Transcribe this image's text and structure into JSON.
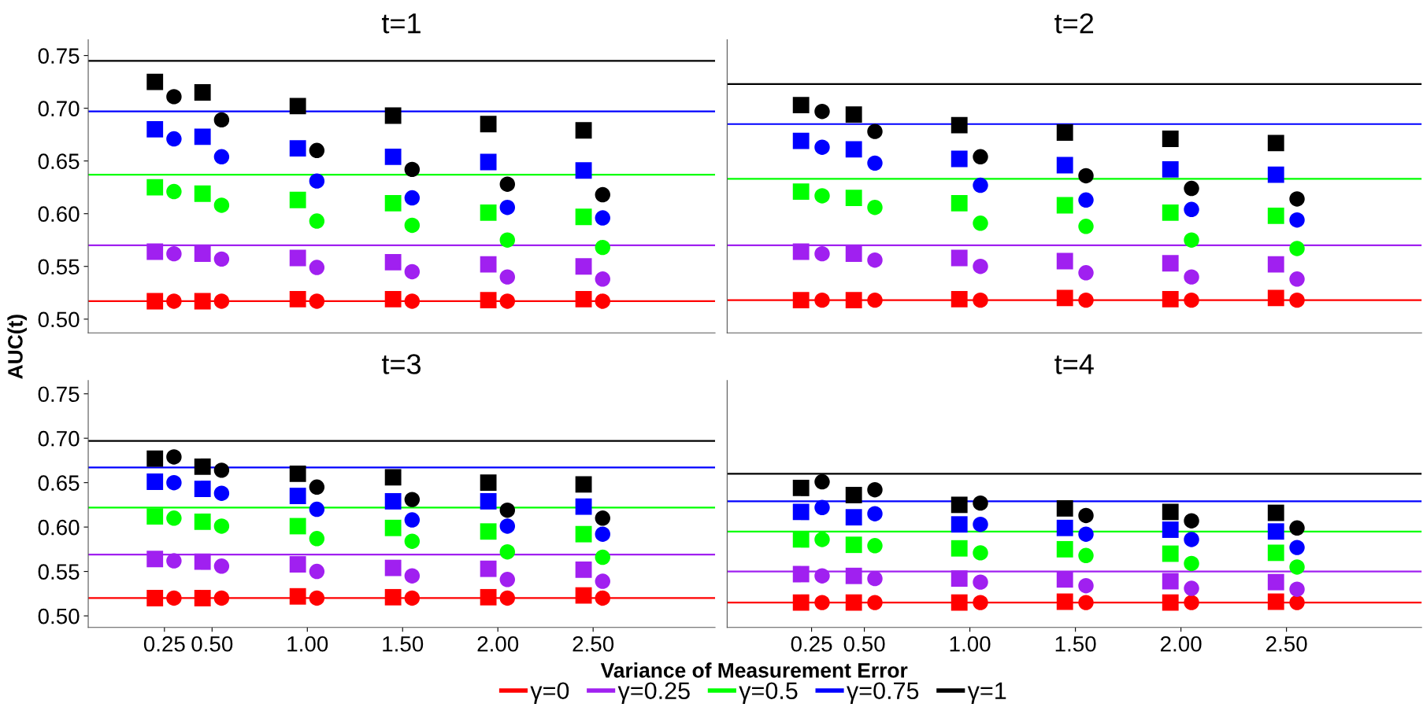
{
  "chart_data": [
    {
      "type": "scatter",
      "title": "t=1",
      "xlabel": "Variance of Measurement Error",
      "ylabel": "AUC(t)",
      "xlim": [
        -0.15,
        3.14
      ],
      "ylim": [
        0.487,
        0.765
      ],
      "yticks": [
        {
          "value": 0.5,
          "label": "0.50"
        },
        0.55,
        {
          "value": 0.6,
          "label": "0.60"
        },
        0.65,
        {
          "value": 0.7,
          "label": "0.70"
        },
        0.75
      ],
      "tick_labels": "y",
      "legend": "bottom",
      "series": [
        {
          "name": "γ=0",
          "type": "line",
          "color": "#ff0000",
          "x": [
            -0.15,
            3.14
          ],
          "values": [
            0.517,
            0.517
          ]
        },
        {
          "name": "γ=0.25",
          "type": "line",
          "color": "#a020f0",
          "x": [
            -0.15,
            3.14
          ],
          "values": [
            0.57,
            0.57
          ]
        },
        {
          "name": "γ=0.5",
          "type": "line",
          "color": "#00ff00",
          "x": [
            -0.15,
            3.14
          ],
          "values": [
            0.637,
            0.637
          ]
        },
        {
          "name": "γ=0.75",
          "type": "line",
          "color": "#0000ff",
          "x": [
            -0.15,
            3.14
          ],
          "values": [
            0.697,
            0.697
          ]
        },
        {
          "name": "γ=1",
          "type": "line",
          "color": "#000000",
          "x": [
            -0.15,
            3.14
          ],
          "values": [
            0.745,
            0.745
          ]
        },
        {
          "marker": "square",
          "color": "#ff0000",
          "x": [
            0.2,
            0.45,
            0.95,
            1.45,
            1.95,
            2.45
          ],
          "values": [
            0.517,
            0.517,
            0.519,
            0.519,
            0.518,
            0.519
          ]
        },
        {
          "marker": "circle",
          "color": "#ff0000",
          "x": [
            0.3,
            0.55,
            1.05,
            1.55,
            2.05,
            2.55
          ],
          "values": [
            0.517,
            0.517,
            0.517,
            0.517,
            0.517,
            0.517
          ]
        },
        {
          "marker": "square",
          "color": "#a020f0",
          "x": [
            0.2,
            0.45,
            0.95,
            1.45,
            1.95,
            2.45
          ],
          "values": [
            0.564,
            0.562,
            0.558,
            0.554,
            0.552,
            0.55
          ]
        },
        {
          "marker": "circle",
          "color": "#a020f0",
          "x": [
            0.3,
            0.55,
            1.05,
            1.55,
            2.05,
            2.55
          ],
          "values": [
            0.562,
            0.557,
            0.549,
            0.545,
            0.54,
            0.538
          ]
        },
        {
          "marker": "square",
          "color": "#00ff00",
          "x": [
            0.2,
            0.45,
            0.95,
            1.45,
            1.95,
            2.45
          ],
          "values": [
            0.625,
            0.619,
            0.613,
            0.61,
            0.601,
            0.597
          ]
        },
        {
          "marker": "circle",
          "color": "#00ff00",
          "x": [
            0.3,
            0.55,
            1.05,
            1.55,
            2.05,
            2.55
          ],
          "values": [
            0.621,
            0.608,
            0.593,
            0.589,
            0.575,
            0.568
          ]
        },
        {
          "marker": "square",
          "color": "#0000ff",
          "x": [
            0.2,
            0.45,
            0.95,
            1.45,
            1.95,
            2.45
          ],
          "values": [
            0.68,
            0.673,
            0.662,
            0.654,
            0.649,
            0.641
          ]
        },
        {
          "marker": "circle",
          "color": "#0000ff",
          "x": [
            0.3,
            0.55,
            1.05,
            1.55,
            2.05,
            2.55
          ],
          "values": [
            0.671,
            0.654,
            0.631,
            0.615,
            0.606,
            0.596
          ]
        },
        {
          "marker": "square",
          "color": "#000000",
          "x": [
            0.2,
            0.45,
            0.95,
            1.45,
            1.95,
            2.45
          ],
          "values": [
            0.725,
            0.715,
            0.702,
            0.693,
            0.685,
            0.679
          ]
        },
        {
          "marker": "circle",
          "color": "#000000",
          "x": [
            0.3,
            0.55,
            1.05,
            1.55,
            2.05,
            2.55
          ],
          "values": [
            0.711,
            0.689,
            0.66,
            0.642,
            0.628,
            0.618
          ]
        }
      ]
    },
    {
      "type": "scatter",
      "title": "t=2",
      "xlim": [
        -0.15,
        3.14
      ],
      "ylim": [
        0.487,
        0.765
      ],
      "tick_labels": false,
      "series": [
        {
          "type": "line",
          "color": "#ff0000",
          "x": [
            -0.15,
            3.14
          ],
          "values": [
            0.518,
            0.518
          ]
        },
        {
          "type": "line",
          "color": "#a020f0",
          "x": [
            -0.15,
            3.14
          ],
          "values": [
            0.57,
            0.57
          ]
        },
        {
          "type": "line",
          "color": "#00ff00",
          "x": [
            -0.15,
            3.14
          ],
          "values": [
            0.633,
            0.633
          ]
        },
        {
          "type": "line",
          "color": "#0000ff",
          "x": [
            -0.15,
            3.14
          ],
          "values": [
            0.685,
            0.685
          ]
        },
        {
          "type": "line",
          "color": "#000000",
          "x": [
            -0.15,
            3.14
          ],
          "values": [
            0.723,
            0.723
          ]
        },
        {
          "marker": "square",
          "color": "#ff0000",
          "x": [
            0.2,
            0.45,
            0.95,
            1.45,
            1.95,
            2.45
          ],
          "values": [
            0.518,
            0.518,
            0.519,
            0.52,
            0.519,
            0.52
          ]
        },
        {
          "marker": "circle",
          "color": "#ff0000",
          "x": [
            0.3,
            0.55,
            1.05,
            1.55,
            2.05,
            2.55
          ],
          "values": [
            0.518,
            0.518,
            0.518,
            0.518,
            0.518,
            0.518
          ]
        },
        {
          "marker": "square",
          "color": "#a020f0",
          "x": [
            0.2,
            0.45,
            0.95,
            1.45,
            1.95,
            2.45
          ],
          "values": [
            0.564,
            0.562,
            0.558,
            0.555,
            0.553,
            0.552
          ]
        },
        {
          "marker": "circle",
          "color": "#a020f0",
          "x": [
            0.3,
            0.55,
            1.05,
            1.55,
            2.05,
            2.55
          ],
          "values": [
            0.562,
            0.556,
            0.55,
            0.544,
            0.54,
            0.538
          ]
        },
        {
          "marker": "square",
          "color": "#00ff00",
          "x": [
            0.2,
            0.45,
            0.95,
            1.45,
            1.95,
            2.45
          ],
          "values": [
            0.621,
            0.615,
            0.61,
            0.608,
            0.601,
            0.598
          ]
        },
        {
          "marker": "circle",
          "color": "#00ff00",
          "x": [
            0.3,
            0.55,
            1.05,
            1.55,
            2.05,
            2.55
          ],
          "values": [
            0.617,
            0.606,
            0.591,
            0.588,
            0.575,
            0.567
          ]
        },
        {
          "marker": "square",
          "color": "#0000ff",
          "x": [
            0.2,
            0.45,
            0.95,
            1.45,
            1.95,
            2.45
          ],
          "values": [
            0.669,
            0.661,
            0.652,
            0.646,
            0.642,
            0.637
          ]
        },
        {
          "marker": "circle",
          "color": "#0000ff",
          "x": [
            0.3,
            0.55,
            1.05,
            1.55,
            2.05,
            2.55
          ],
          "values": [
            0.663,
            0.648,
            0.627,
            0.613,
            0.604,
            0.594
          ]
        },
        {
          "marker": "square",
          "color": "#000000",
          "x": [
            0.2,
            0.45,
            0.95,
            1.45,
            1.95,
            2.45
          ],
          "values": [
            0.703,
            0.694,
            0.684,
            0.677,
            0.671,
            0.667
          ]
        },
        {
          "marker": "circle",
          "color": "#000000",
          "x": [
            0.3,
            0.55,
            1.05,
            1.55,
            2.05,
            2.55
          ],
          "values": [
            0.697,
            0.678,
            0.654,
            0.636,
            0.624,
            0.614
          ]
        }
      ]
    },
    {
      "type": "scatter",
      "title": "t=3",
      "xlim": [
        -0.15,
        3.14
      ],
      "ylim": [
        0.487,
        0.765
      ],
      "xticks": [
        0.25,
        {
          "value": 0.5,
          "label": "0.50"
        },
        {
          "value": 1,
          "label": "1.00"
        },
        {
          "value": 1.5,
          "label": "1.50"
        },
        {
          "value": 2,
          "label": "2.00"
        },
        {
          "value": 2.5,
          "label": "2.50"
        }
      ],
      "yticks": [
        {
          "value": 0.5,
          "label": "0.50"
        },
        0.55,
        {
          "value": 0.6,
          "label": "0.60"
        },
        0.65,
        {
          "value": 0.7,
          "label": "0.70"
        },
        0.75
      ],
      "series": [
        {
          "type": "line",
          "color": "#ff0000",
          "x": [
            -0.15,
            3.14
          ],
          "values": [
            0.52,
            0.52
          ]
        },
        {
          "type": "line",
          "color": "#a020f0",
          "x": [
            -0.15,
            3.14
          ],
          "values": [
            0.569,
            0.569
          ]
        },
        {
          "type": "line",
          "color": "#00ff00",
          "x": [
            -0.15,
            3.14
          ],
          "values": [
            0.622,
            0.622
          ]
        },
        {
          "type": "line",
          "color": "#0000ff",
          "x": [
            -0.15,
            3.14
          ],
          "values": [
            0.667,
            0.667
          ]
        },
        {
          "type": "line",
          "color": "#000000",
          "x": [
            -0.15,
            3.14
          ],
          "values": [
            0.697,
            0.697
          ]
        },
        {
          "marker": "square",
          "color": "#ff0000",
          "x": [
            0.2,
            0.45,
            0.95,
            1.45,
            1.95,
            2.45
          ],
          "values": [
            0.52,
            0.52,
            0.522,
            0.521,
            0.521,
            0.523
          ]
        },
        {
          "marker": "circle",
          "color": "#ff0000",
          "x": [
            0.3,
            0.55,
            1.05,
            1.55,
            2.05,
            2.55
          ],
          "values": [
            0.52,
            0.52,
            0.52,
            0.52,
            0.52,
            0.52
          ]
        },
        {
          "marker": "square",
          "color": "#a020f0",
          "x": [
            0.2,
            0.45,
            0.95,
            1.45,
            1.95,
            2.45
          ],
          "values": [
            0.564,
            0.561,
            0.558,
            0.554,
            0.553,
            0.552
          ]
        },
        {
          "marker": "circle",
          "color": "#a020f0",
          "x": [
            0.3,
            0.55,
            1.05,
            1.55,
            2.05,
            2.55
          ],
          "values": [
            0.562,
            0.556,
            0.55,
            0.545,
            0.541,
            0.539
          ]
        },
        {
          "marker": "square",
          "color": "#00ff00",
          "x": [
            0.2,
            0.45,
            0.95,
            1.45,
            1.95,
            2.45
          ],
          "values": [
            0.612,
            0.606,
            0.601,
            0.599,
            0.595,
            0.592
          ]
        },
        {
          "marker": "circle",
          "color": "#00ff00",
          "x": [
            0.3,
            0.55,
            1.05,
            1.55,
            2.05,
            2.55
          ],
          "values": [
            0.61,
            0.601,
            0.587,
            0.584,
            0.572,
            0.566
          ]
        },
        {
          "marker": "square",
          "color": "#0000ff",
          "x": [
            0.2,
            0.45,
            0.95,
            1.45,
            1.95,
            2.45
          ],
          "values": [
            0.651,
            0.643,
            0.635,
            0.629,
            0.629,
            0.623
          ]
        },
        {
          "marker": "circle",
          "color": "#0000ff",
          "x": [
            0.3,
            0.55,
            1.05,
            1.55,
            2.05,
            2.55
          ],
          "values": [
            0.65,
            0.638,
            0.62,
            0.608,
            0.601,
            0.592
          ]
        },
        {
          "marker": "square",
          "color": "#000000",
          "x": [
            0.2,
            0.45,
            0.95,
            1.45,
            1.95,
            2.45
          ],
          "values": [
            0.677,
            0.668,
            0.66,
            0.656,
            0.65,
            0.648
          ]
        },
        {
          "marker": "circle",
          "color": "#000000",
          "x": [
            0.3,
            0.55,
            1.05,
            1.55,
            2.05,
            2.55
          ],
          "values": [
            0.679,
            0.664,
            0.645,
            0.631,
            0.619,
            0.61
          ]
        }
      ]
    },
    {
      "type": "scatter",
      "title": "t=4",
      "xlim": [
        -0.15,
        3.14
      ],
      "ylim": [
        0.487,
        0.765
      ],
      "xticks": [
        0.25,
        {
          "value": 0.5,
          "label": "0.50"
        },
        {
          "value": 1,
          "label": "1.00"
        },
        {
          "value": 1.5,
          "label": "1.50"
        },
        {
          "value": 2,
          "label": "2.00"
        },
        {
          "value": 2.5,
          "label": "2.50"
        }
      ],
      "tick_labels": "x",
      "series": [
        {
          "type": "line",
          "color": "#ff0000",
          "x": [
            -0.15,
            3.14
          ],
          "values": [
            0.515,
            0.515
          ]
        },
        {
          "type": "line",
          "color": "#a020f0",
          "x": [
            -0.15,
            3.14
          ],
          "values": [
            0.55,
            0.55
          ]
        },
        {
          "type": "line",
          "color": "#00ff00",
          "x": [
            -0.15,
            3.14
          ],
          "values": [
            0.595,
            0.595
          ]
        },
        {
          "type": "line",
          "color": "#0000ff",
          "x": [
            -0.15,
            3.14
          ],
          "values": [
            0.629,
            0.629
          ]
        },
        {
          "type": "line",
          "color": "#000000",
          "x": [
            -0.15,
            3.14
          ],
          "values": [
            0.66,
            0.66
          ]
        },
        {
          "marker": "square",
          "color": "#ff0000",
          "x": [
            0.2,
            0.45,
            0.95,
            1.45,
            1.95,
            2.45
          ],
          "values": [
            0.515,
            0.515,
            0.515,
            0.516,
            0.515,
            0.516
          ]
        },
        {
          "marker": "circle",
          "color": "#ff0000",
          "x": [
            0.3,
            0.55,
            1.05,
            1.55,
            2.05,
            2.55
          ],
          "values": [
            0.515,
            0.515,
            0.515,
            0.515,
            0.515,
            0.515
          ]
        },
        {
          "marker": "square",
          "color": "#a020f0",
          "x": [
            0.2,
            0.45,
            0.95,
            1.45,
            1.95,
            2.45
          ],
          "values": [
            0.547,
            0.545,
            0.542,
            0.541,
            0.539,
            0.538
          ]
        },
        {
          "marker": "circle",
          "color": "#a020f0",
          "x": [
            0.3,
            0.55,
            1.05,
            1.55,
            2.05,
            2.55
          ],
          "values": [
            0.545,
            0.542,
            0.538,
            0.534,
            0.531,
            0.53
          ]
        },
        {
          "marker": "square",
          "color": "#00ff00",
          "x": [
            0.2,
            0.45,
            0.95,
            1.45,
            1.95,
            2.45
          ],
          "values": [
            0.586,
            0.58,
            0.576,
            0.575,
            0.57,
            0.571
          ]
        },
        {
          "marker": "circle",
          "color": "#00ff00",
          "x": [
            0.3,
            0.55,
            1.05,
            1.55,
            2.05,
            2.55
          ],
          "values": [
            0.586,
            0.579,
            0.571,
            0.568,
            0.559,
            0.555
          ]
        },
        {
          "marker": "square",
          "color": "#0000ff",
          "x": [
            0.2,
            0.45,
            0.95,
            1.45,
            1.95,
            2.45
          ],
          "values": [
            0.617,
            0.611,
            0.603,
            0.599,
            0.597,
            0.595
          ]
        },
        {
          "marker": "circle",
          "color": "#0000ff",
          "x": [
            0.3,
            0.55,
            1.05,
            1.55,
            2.05,
            2.55
          ],
          "values": [
            0.622,
            0.615,
            0.603,
            0.592,
            0.586,
            0.577
          ]
        },
        {
          "marker": "square",
          "color": "#000000",
          "x": [
            0.2,
            0.45,
            0.95,
            1.45,
            1.95,
            2.45
          ],
          "values": [
            0.644,
            0.636,
            0.625,
            0.621,
            0.617,
            0.616
          ]
        },
        {
          "marker": "circle",
          "color": "#000000",
          "x": [
            0.3,
            0.55,
            1.05,
            1.55,
            2.05,
            2.55
          ],
          "values": [
            0.651,
            0.642,
            0.627,
            0.613,
            0.607,
            0.599
          ]
        }
      ]
    }
  ]
}
